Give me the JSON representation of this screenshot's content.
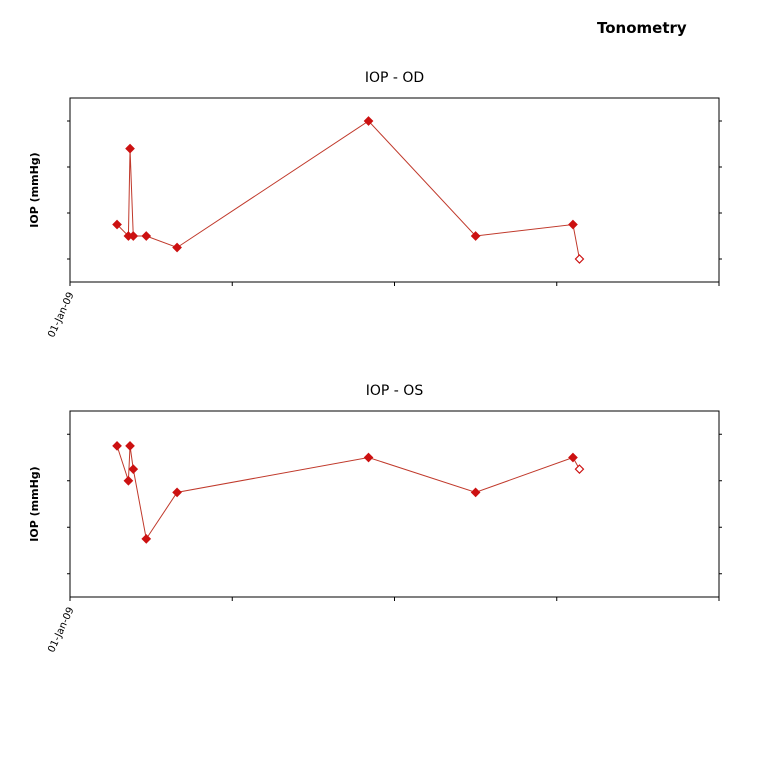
{
  "page_title": "Tonometry",
  "chart_data": [
    {
      "type": "line",
      "title": "IOP - OD",
      "xlabel": "",
      "ylabel": "IOP (mmHg)",
      "x_tick_labels": [
        "01-Jan-09"
      ],
      "grid": false,
      "series": [
        {
          "points": [
            {
              "x": 0.29,
              "y": 2.25,
              "filled": true
            },
            {
              "x": 0.36,
              "y": 2.0,
              "filled": true
            },
            {
              "x": 0.37,
              "y": 3.9,
              "filled": true
            },
            {
              "x": 0.39,
              "y": 2.0,
              "filled": true
            },
            {
              "x": 0.47,
              "y": 2.0,
              "filled": true
            },
            {
              "x": 0.66,
              "y": 1.75,
              "filled": true
            },
            {
              "x": 1.84,
              "y": 4.5,
              "filled": true
            },
            {
              "x": 2.5,
              "y": 2.0,
              "filled": true
            },
            {
              "x": 3.1,
              "y": 2.25,
              "filled": true
            },
            {
              "x": 3.14,
              "y": 1.5,
              "filled": false
            }
          ]
        }
      ],
      "colors": {
        "line": "#c0392b",
        "marker": "#cc1111"
      }
    },
    {
      "type": "line",
      "title": "IOP - OS",
      "xlabel": "",
      "ylabel": "IOP (mmHg)",
      "x_tick_labels": [
        "01-Jan-09"
      ],
      "grid": false,
      "series": [
        {
          "points": [
            {
              "x": 0.29,
              "y": 4.25,
              "filled": true
            },
            {
              "x": 0.36,
              "y": 3.5,
              "filled": true
            },
            {
              "x": 0.37,
              "y": 4.25,
              "filled": true
            },
            {
              "x": 0.39,
              "y": 3.75,
              "filled": true
            },
            {
              "x": 0.47,
              "y": 2.25,
              "filled": true
            },
            {
              "x": 0.66,
              "y": 3.25,
              "filled": true
            },
            {
              "x": 1.84,
              "y": 4.0,
              "filled": true
            },
            {
              "x": 2.5,
              "y": 3.25,
              "filled": true
            },
            {
              "x": 3.1,
              "y": 4.0,
              "filled": true
            },
            {
              "x": 3.14,
              "y": 3.75,
              "filled": false
            }
          ]
        }
      ],
      "colors": {
        "line": "#c0392b",
        "marker": "#cc1111"
      }
    }
  ]
}
